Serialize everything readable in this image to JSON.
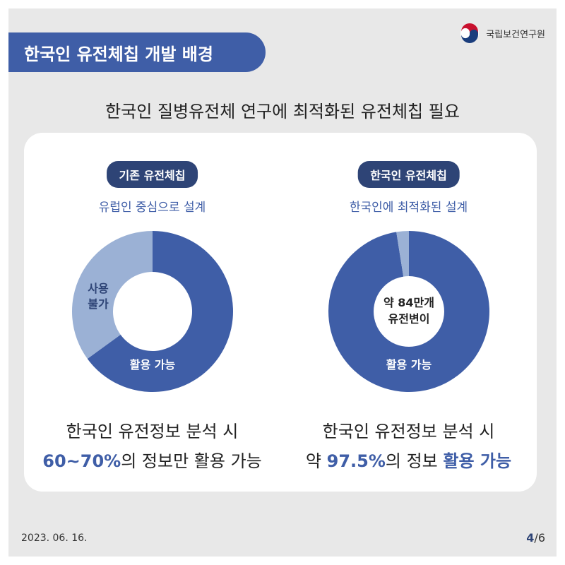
{
  "header": {
    "title": "한국인 유전체칩 개발 배경",
    "org_name": "국립보건연구원",
    "subtitle": "한국인 질병유전체 연구에 최적화된 유전체칩 필요"
  },
  "colors": {
    "primary": "#3f5ea7",
    "badge": "#2e4476",
    "light_segment": "#9bb1d5",
    "background": "#e8e8e8",
    "card": "#ffffff"
  },
  "panels": [
    {
      "badge": "기존 유전체칩",
      "description": "유럽인 중심으로 설계",
      "segment_labels": {
        "unusable": [
          "사용",
          "불가"
        ],
        "usable": "활용 가능"
      },
      "center_text": [
        "",
        ""
      ],
      "caption_line1": "한국인 유전정보 분석 시",
      "caption_hl": "60~70%",
      "caption_rest": "의 정보만 활용 가능",
      "caption_hl2": ""
    },
    {
      "badge": "한국인 유전체칩",
      "description": "한국인에 최적화된 설계",
      "segment_labels": {
        "unusable": [
          "",
          ""
        ],
        "usable": "활용 가능"
      },
      "center_text": [
        "약 84만개",
        "유전변이"
      ],
      "caption_line1": "한국인 유전정보 분석 시",
      "caption_pre": "약 ",
      "caption_hl": "97.5%",
      "caption_rest": "의 정보 ",
      "caption_hl2": "활용 가능"
    }
  ],
  "chart_data": [
    {
      "type": "pie",
      "categories": [
        "활용 가능",
        "사용 불가"
      ],
      "values": [
        65,
        35
      ],
      "colors": [
        "#3f5ea7",
        "#9bb1d5"
      ],
      "donut": true
    },
    {
      "type": "pie",
      "categories": [
        "활용 가능",
        ""
      ],
      "values": [
        97.5,
        2.5
      ],
      "colors": [
        "#3f5ea7",
        "#9bb1d5"
      ],
      "donut": false
    }
  ],
  "footer": {
    "date": "2023. 06. 16.",
    "page_current": "4",
    "page_total": "/6"
  }
}
